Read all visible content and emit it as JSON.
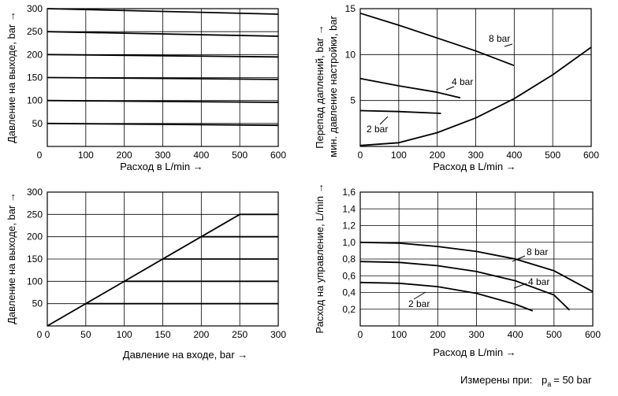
{
  "chart_data": [
    {
      "type": "line",
      "xlabel": "Расход в L/min",
      "ylabel": "Давление на выходе, bar",
      "xlim": [
        0,
        600
      ],
      "ylim": [
        0,
        300
      ],
      "x_ticks": [
        "100",
        "200",
        "300",
        "400",
        "500",
        "600"
      ],
      "y_ticks": [
        "50",
        "100",
        "150",
        "200",
        "250",
        "300"
      ],
      "grid": true,
      "series": [
        {
          "x": [
            0,
            600
          ],
          "y": [
            50,
            46
          ]
        },
        {
          "x": [
            0,
            600
          ],
          "y": [
            100,
            96
          ]
        },
        {
          "x": [
            0,
            600
          ],
          "y": [
            150,
            146
          ]
        },
        {
          "x": [
            0,
            600
          ],
          "y": [
            200,
            195
          ]
        },
        {
          "x": [
            0,
            600
          ],
          "y": [
            250,
            240
          ]
        },
        {
          "x": [
            0,
            600
          ],
          "y": [
            300,
            288
          ]
        }
      ]
    },
    {
      "type": "line",
      "xlabel": "Расход в L/min",
      "ylabel": "Перепад дaплений, bar",
      "ylabel2": "мин. давление настройки, bar",
      "xlim": [
        0,
        600
      ],
      "ylim": [
        0,
        15
      ],
      "x_ticks": [
        "0",
        "100",
        "200",
        "300",
        "400",
        "500",
        "600"
      ],
      "y_ticks": [
        "5",
        "10",
        "15"
      ],
      "grid": true,
      "series": [
        {
          "name": "8 bar",
          "x": [
            0,
            100,
            200,
            300,
            400
          ],
          "y": [
            14.5,
            13.2,
            11.8,
            10.4,
            8.8
          ]
        },
        {
          "name": "4 bar",
          "x": [
            0,
            100,
            200,
            260
          ],
          "y": [
            7.4,
            6.6,
            5.9,
            5.3
          ]
        },
        {
          "name": "2 bar",
          "x": [
            0,
            100,
            210
          ],
          "y": [
            3.9,
            3.8,
            3.6
          ]
        },
        {
          "x": [
            0,
            100,
            200,
            300,
            400,
            500,
            600
          ],
          "y": [
            0.1,
            0.4,
            1.5,
            3.1,
            5.2,
            7.8,
            10.8
          ]
        }
      ]
    },
    {
      "type": "line",
      "xlabel": "Давление на входе, bar",
      "ylabel": "Давление на выходе, bar",
      "xlim": [
        0,
        300
      ],
      "ylim": [
        0,
        300
      ],
      "x_ticks": [
        "0",
        "50",
        "100",
        "150",
        "200",
        "250",
        "300"
      ],
      "y_ticks": [
        "50",
        "100",
        "150",
        "200",
        "250",
        "300"
      ],
      "grid": true,
      "series": [
        {
          "x": [
            0,
            250
          ],
          "y": [
            0,
            250
          ]
        },
        {
          "x": [
            50,
            300
          ],
          "y": [
            50,
            50
          ]
        },
        {
          "x": [
            100,
            300
          ],
          "y": [
            100,
            100
          ]
        },
        {
          "x": [
            150,
            300
          ],
          "y": [
            150,
            150
          ]
        },
        {
          "x": [
            200,
            300
          ],
          "y": [
            200,
            200
          ]
        },
        {
          "x": [
            250,
            300
          ],
          "y": [
            250,
            250
          ]
        }
      ]
    },
    {
      "type": "line",
      "xlabel": "Расход в L/min",
      "ylabel": "Расход на управление, L/min",
      "xlim": [
        0,
        600
      ],
      "ylim": [
        0,
        1.6
      ],
      "x_ticks": [
        "0",
        "100",
        "200",
        "300",
        "400",
        "500",
        "600"
      ],
      "y_ticks": [
        "0,2",
        "0,4",
        "0,6",
        "0,8",
        "1,0",
        "1,2",
        "1,4",
        "1,6"
      ],
      "grid": true,
      "series": [
        {
          "name": "8 bar",
          "x": [
            0,
            100,
            200,
            300,
            400,
            500,
            600
          ],
          "y": [
            1.0,
            0.99,
            0.95,
            0.89,
            0.8,
            0.66,
            0.41
          ]
        },
        {
          "name": "4 bar",
          "x": [
            0,
            100,
            200,
            300,
            400,
            500,
            540
          ],
          "y": [
            0.77,
            0.76,
            0.72,
            0.65,
            0.54,
            0.37,
            0.19
          ]
        },
        {
          "name": "2 bar",
          "x": [
            0,
            100,
            200,
            300,
            400,
            445
          ],
          "y": [
            0.52,
            0.51,
            0.47,
            0.39,
            0.26,
            0.18
          ]
        }
      ]
    }
  ],
  "footnote": {
    "label": "Измерены при:",
    "p_symbol": "p",
    "p_subscript": "a",
    "value": "= 50 bar"
  }
}
